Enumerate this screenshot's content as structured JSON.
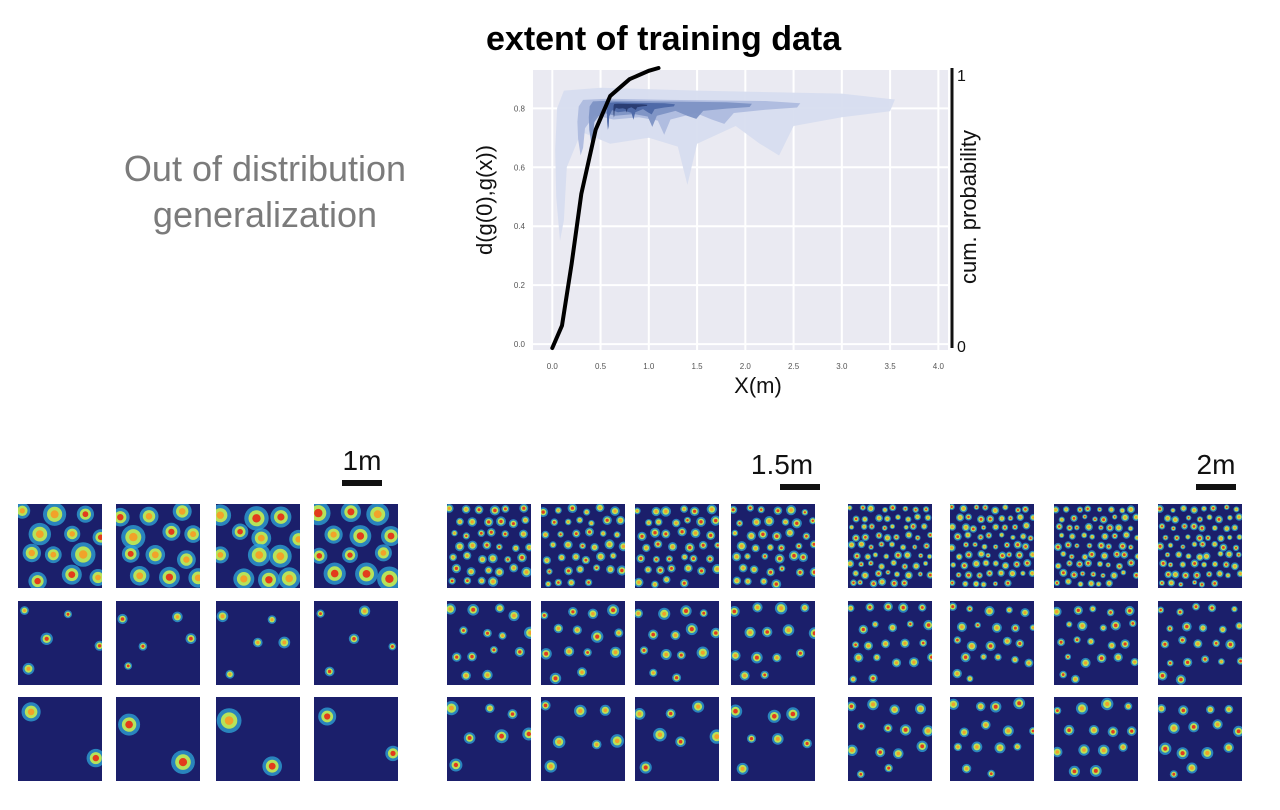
{
  "heading": {
    "line1": "Out of distribution",
    "line2": "generalization"
  },
  "figure": {
    "title": "extent of training data",
    "xlabel": "X(m)",
    "ylabel": "d(g(0),g(x))",
    "right_label": "cum. probability",
    "right_top": "1",
    "right_bottom": "0",
    "x_ticks": [
      "0.0",
      "0.5",
      "1.0",
      "1.5",
      "2.0",
      "2.5",
      "3.0",
      "3.5",
      "4.0"
    ],
    "y_ticks": [
      "0.0",
      "0.2",
      "0.4",
      "0.6",
      "0.8"
    ]
  },
  "chart_data": {
    "type": "density_with_cdf",
    "xlabel": "X(m)",
    "ylabel": "d(g(0),g(x))",
    "xlim": [
      -0.2,
      4.1
    ],
    "ylim": [
      -0.02,
      0.93
    ],
    "grid": true,
    "density_palette": [
      "#d7ddef",
      "#aebbde",
      "#7d92c4",
      "#4c67a6",
      "#283b70"
    ],
    "cdf_color": "#000000",
    "cdf_curve": [
      {
        "x": 0.0,
        "p": 0.0
      },
      {
        "x": 0.1,
        "p": 0.08
      },
      {
        "x": 0.2,
        "p": 0.3
      },
      {
        "x": 0.3,
        "p": 0.55
      },
      {
        "x": 0.45,
        "p": 0.78
      },
      {
        "x": 0.6,
        "p": 0.9
      },
      {
        "x": 0.8,
        "p": 0.96
      },
      {
        "x": 1.0,
        "p": 0.99
      },
      {
        "x": 1.1,
        "p": 1.0
      }
    ]
  },
  "panels": [
    {
      "scale_label": "1m",
      "rows": [
        {
          "style": "dense",
          "spots": 12,
          "size": 6
        },
        {
          "style": "sparse",
          "spots": 5,
          "size": 3
        },
        {
          "style": "large",
          "spots": 2,
          "size": 6
        }
      ]
    },
    {
      "scale_label": "1.5m",
      "rows": [
        {
          "style": "dense",
          "spots": 40,
          "size": 2.5
        },
        {
          "style": "medium",
          "spots": 14,
          "size": 3
        },
        {
          "style": "medium",
          "spots": 7,
          "size": 3.5
        }
      ]
    },
    {
      "scale_label": "2m",
      "rows": [
        {
          "style": "dense",
          "spots": 70,
          "size": 2
        },
        {
          "style": "medium",
          "spots": 22,
          "size": 2.5
        },
        {
          "style": "medium",
          "spots": 14,
          "size": 3
        }
      ]
    }
  ]
}
